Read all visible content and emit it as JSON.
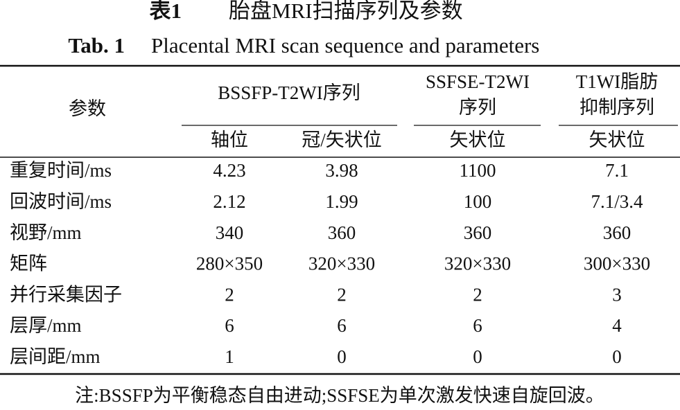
{
  "caption": {
    "cn_label": "表1",
    "cn_title": "胎盘MRI扫描序列及参数",
    "en_label": "Tab. 1",
    "en_title": "Placental MRI scan sequence and parameters"
  },
  "table": {
    "header": {
      "param": "参数",
      "groups": [
        [
          "BSSFP-T2WI序列"
        ],
        [
          "SSFSE-T2WI",
          "序列"
        ],
        [
          "T1WI脂肪",
          "抑制序列"
        ]
      ],
      "subheaders": [
        "轴位",
        "冠/矢状位",
        "矢状位",
        "矢状位"
      ]
    },
    "rows": [
      [
        "重复时间/ms",
        "4.23",
        "3.98",
        "1100",
        "7.1"
      ],
      [
        "回波时间/ms",
        "2.12",
        "1.99",
        "100",
        "7.1/3.4"
      ],
      [
        "视野/mm",
        "340",
        "360",
        "360",
        "360"
      ],
      [
        "矩阵",
        "280×350",
        "320×330",
        "320×330",
        "300×330"
      ],
      [
        "并行采集因子",
        "2",
        "2",
        "2",
        "3"
      ],
      [
        "层厚/mm",
        "6",
        "6",
        "6",
        "4"
      ],
      [
        "层间距/mm",
        "1",
        "0",
        "0",
        "0"
      ]
    ]
  },
  "note": "注:BSSFP为平衡稳态自由进动;SSFSE为单次激发快速自旋回波。"
}
